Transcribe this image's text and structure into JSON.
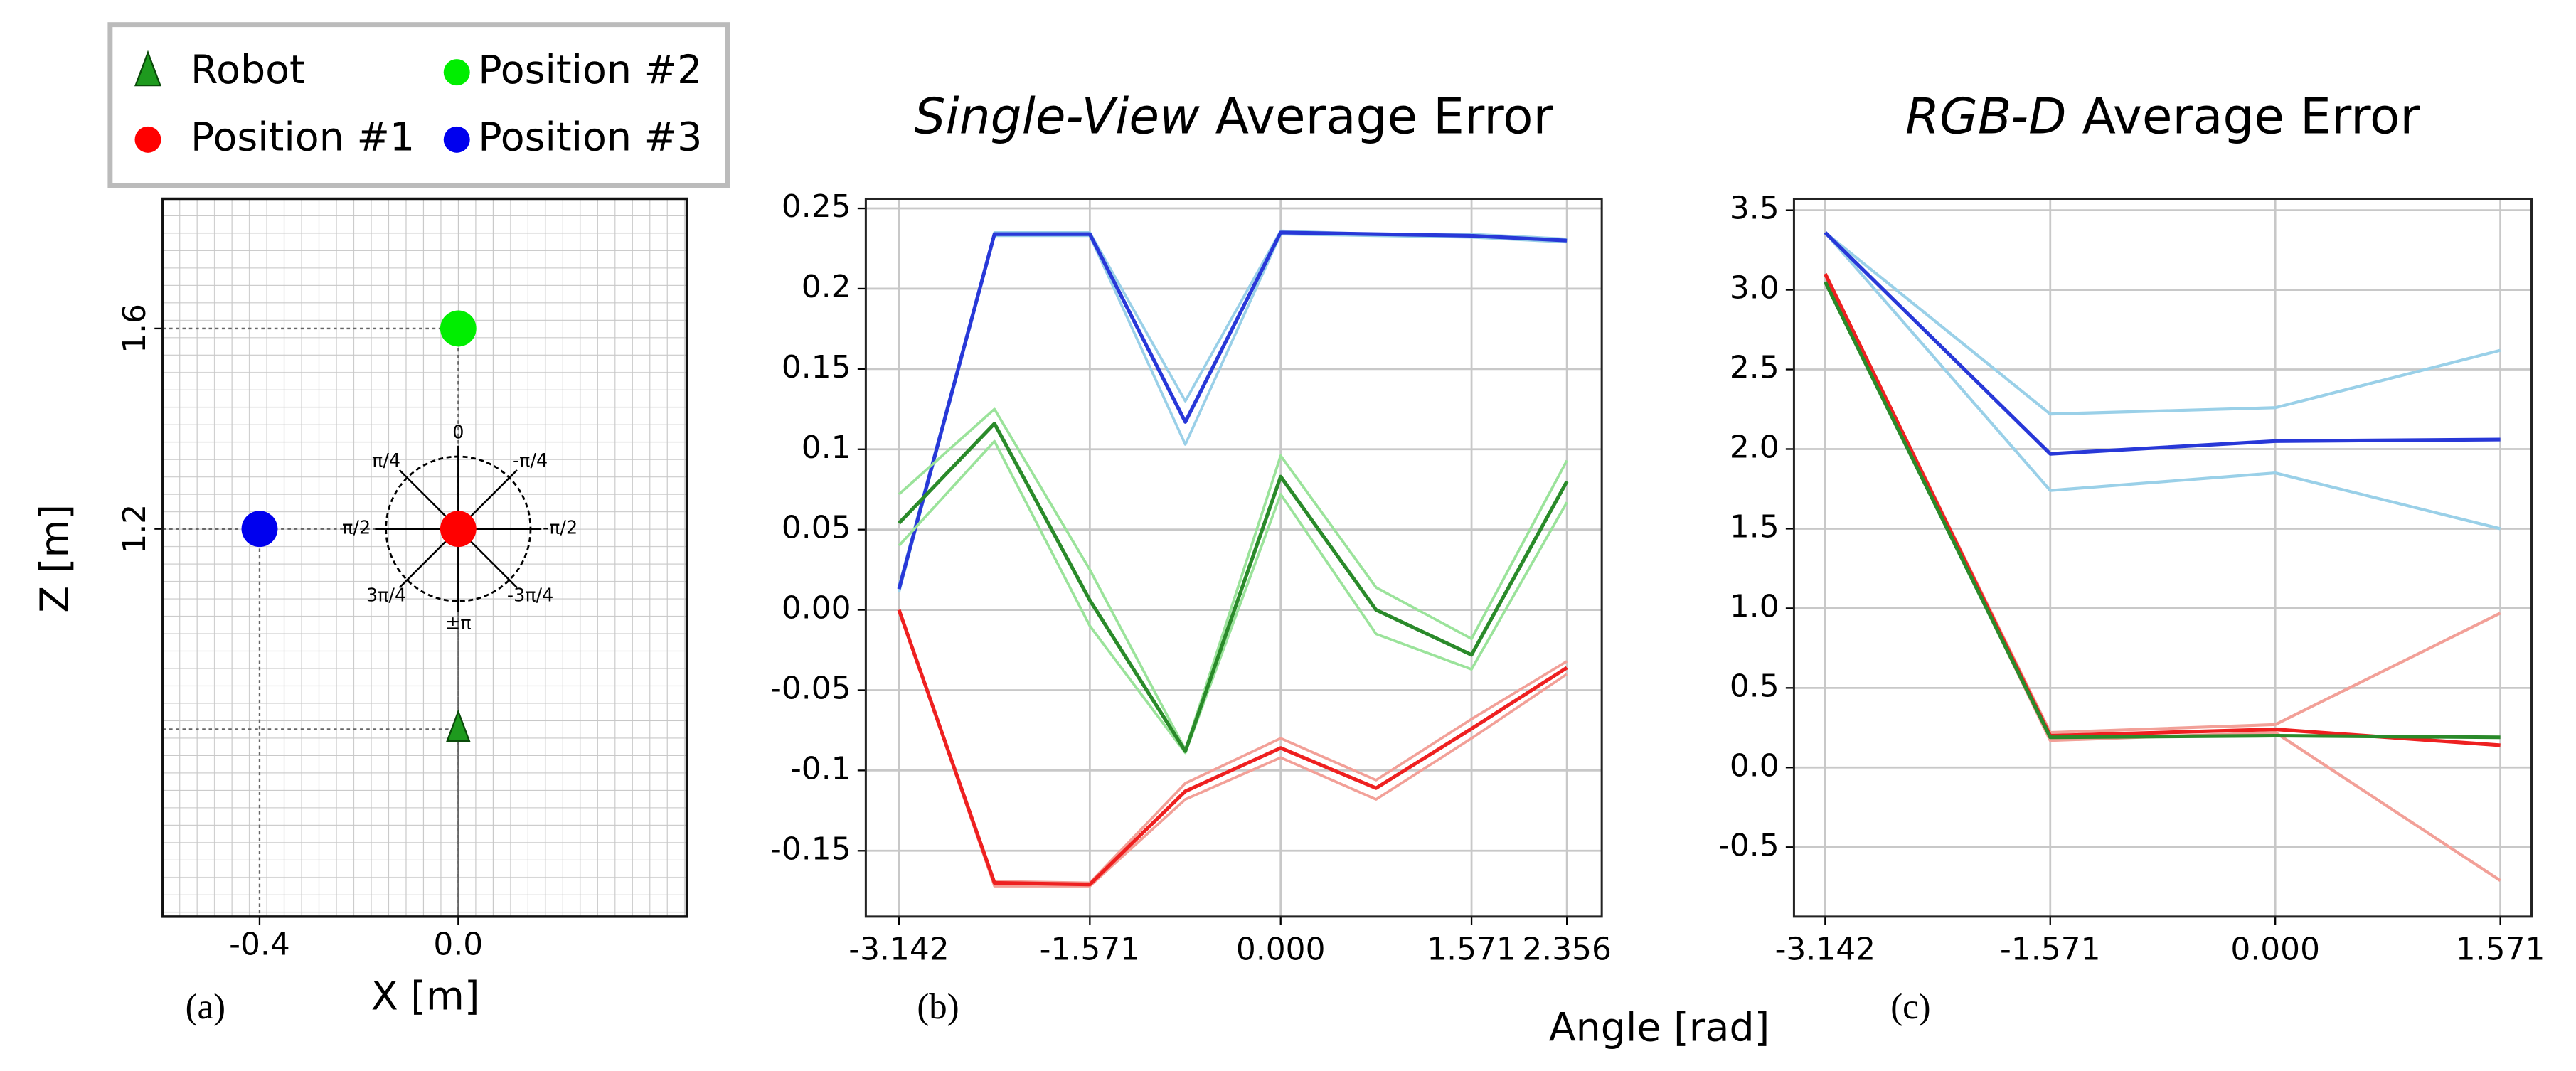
{
  "shared_xlabel": "Angle [rad]",
  "chart_data": [
    {
      "type": "scatter",
      "panel_label": "(a)",
      "xlabel": "X [m]",
      "ylabel": "Z [m]",
      "xlim": [
        -0.595,
        0.46
      ],
      "ylim": [
        0.426,
        1.859
      ],
      "xticks": [
        -0.4,
        {
          "value": 0,
          "label": "0.0"
        }
      ],
      "yticks": [
        1.2,
        1.6
      ],
      "series": [
        {
          "name": "Robot",
          "color": "#1e9a1e",
          "marker": "triangle",
          "x": [
            0
          ],
          "y": [
            0.8
          ]
        },
        {
          "name": "Position #1",
          "color": "#ff0000",
          "marker": "circle",
          "x": [
            0
          ],
          "y": [
            1.2
          ]
        },
        {
          "name": "Position #2",
          "color": "#00ee00",
          "marker": "circle",
          "x": [
            0
          ],
          "y": [
            1.6
          ]
        },
        {
          "name": "Position #3",
          "color": "#0000ee",
          "marker": "circle",
          "x": [
            -0.4
          ],
          "y": [
            1.2
          ]
        }
      ],
      "annotations": [
        "0",
        "π/4",
        "-π/4",
        "π/2",
        "-π/2",
        "3π/4",
        "-3π/4",
        "±π"
      ]
    },
    {
      "type": "line",
      "panel_label": "(b)",
      "title_emphasis": "Single-View",
      "title": "Average Error",
      "x": [
        -3.142,
        -2.356,
        -1.571,
        -0.785,
        0,
        0.785,
        1.571,
        2.356
      ],
      "xlim": [
        -3.415,
        2.643
      ],
      "ylim": [
        -0.191,
        0.256
      ],
      "xticks": [
        -3.142,
        -1.571,
        {
          "value": 0,
          "label": "0.000"
        },
        1.571,
        2.356
      ],
      "yticks": [
        0.25,
        0.2,
        0.15,
        0.1,
        0.05,
        {
          "value": 0,
          "label": "0.00"
        },
        -0.05,
        -0.1,
        -0.15
      ],
      "grid": true,
      "series": [
        {
          "color": "#9ad0e8",
          "width": 1.6,
          "values": [
            0.015,
            0.235,
            0.235,
            0.13,
            0.236,
            0.234,
            0.234,
            0.231
          ]
        },
        {
          "color": "#9ad0e8",
          "width": 1.6,
          "values": [
            0.011,
            0.233,
            0.233,
            0.103,
            0.234,
            0.233,
            0.232,
            0.229
          ]
        },
        {
          "color": "#2838d8",
          "width": 2.2,
          "values": [
            0.013,
            0.234,
            0.234,
            0.117,
            0.235,
            0.234,
            0.233,
            0.23
          ]
        },
        {
          "color": "#9be39b",
          "width": 1.6,
          "values": [
            0.072,
            0.125,
            0.025,
            -0.087,
            0.096,
            0.014,
            -0.018,
            0.093
          ]
        },
        {
          "color": "#9be39b",
          "width": 1.6,
          "values": [
            0.04,
            0.105,
            -0.01,
            -0.089,
            0.072,
            -0.015,
            -0.037,
            0.067
          ]
        },
        {
          "color": "#2a8a2a",
          "width": 2.2,
          "values": [
            0.054,
            0.116,
            0.006,
            -0.088,
            0.083,
            0,
            -0.028,
            0.08
          ]
        },
        {
          "color": "#f2a098",
          "width": 1.6,
          "values": [
            0,
            -0.169,
            -0.17,
            -0.108,
            -0.08,
            -0.106,
            -0.068,
            -0.032
          ]
        },
        {
          "color": "#f2a098",
          "width": 1.6,
          "values": [
            0,
            -0.172,
            -0.172,
            -0.118,
            -0.092,
            -0.118,
            -0.08,
            -0.04
          ]
        },
        {
          "color": "#ee2020",
          "width": 2.2,
          "values": [
            0,
            -0.17,
            -0.171,
            -0.113,
            -0.086,
            -0.111,
            -0.074,
            -0.036
          ]
        }
      ]
    },
    {
      "type": "line",
      "panel_label": "(c)",
      "title_emphasis": "RGB-D",
      "title": "Average Error",
      "x": [
        -3.142,
        -1.571,
        0,
        1.571
      ],
      "xlim": [
        -3.36,
        1.789
      ],
      "ylim": [
        -0.936,
        3.572
      ],
      "xticks": [
        -3.142,
        -1.571,
        {
          "value": 0,
          "label": "0.000"
        },
        1.571
      ],
      "yticks": [
        3.5,
        {
          "value": 3,
          "label": "3.0"
        },
        2.5,
        {
          "value": 2,
          "label": "2.0"
        },
        1.5,
        {
          "value": 1,
          "label": "1.0"
        },
        0.5,
        {
          "value": 0,
          "label": "0.0"
        },
        -0.5
      ],
      "grid": true,
      "series": [
        {
          "color": "#9ad0e8",
          "width": 1.8,
          "values": [
            3.36,
            2.22,
            2.26,
            2.62
          ]
        },
        {
          "color": "#9ad0e8",
          "width": 1.8,
          "values": [
            3.36,
            1.74,
            1.85,
            1.5
          ]
        },
        {
          "color": "#2838d8",
          "width": 2.2,
          "values": [
            3.36,
            1.97,
            2.05,
            2.06
          ]
        },
        {
          "color": "#f2a098",
          "width": 1.8,
          "values": [
            3.1,
            0.22,
            0.27,
            0.97
          ]
        },
        {
          "color": "#f2a098",
          "width": 1.8,
          "values": [
            3.1,
            0.17,
            0.22,
            -0.71
          ]
        },
        {
          "color": "#ee2020",
          "width": 2.2,
          "values": [
            3.1,
            0.2,
            0.24,
            0.14
          ]
        },
        {
          "color": "#2a8a2a",
          "width": 2.2,
          "values": [
            3.05,
            0.19,
            0.2,
            0.19
          ]
        }
      ]
    }
  ]
}
